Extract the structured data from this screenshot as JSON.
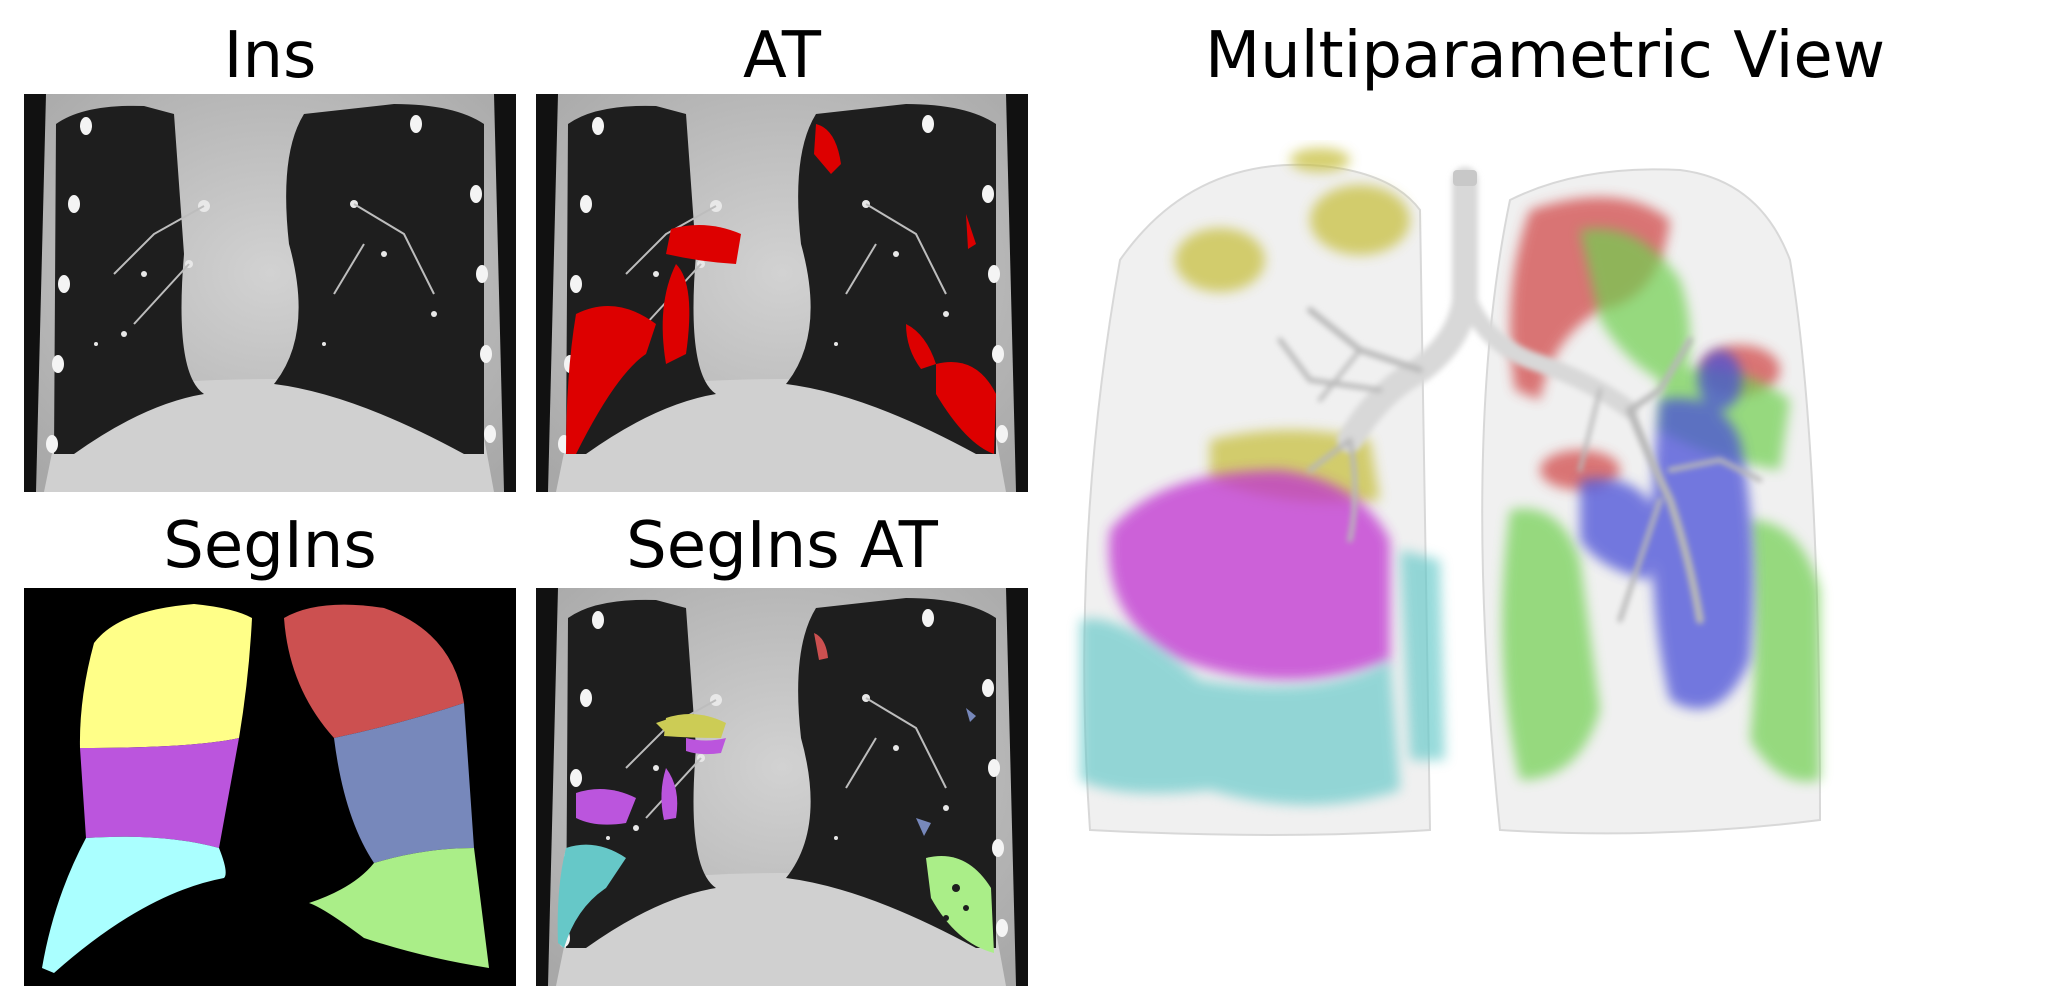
{
  "panels": {
    "ins": {
      "title": "Ins"
    },
    "at": {
      "title": "AT"
    },
    "segins": {
      "title": "SegIns"
    },
    "seginsat": {
      "title": "SegIns AT"
    },
    "multi": {
      "title": "Multiparametric View"
    }
  },
  "colors": {
    "background": "#ffffff",
    "ct_tissue": "#c8c8c8",
    "lung_air": "#1e1e1e",
    "air_trapping": "#dd0000",
    "lobe_right_upper": "#ffff88",
    "lobe_right_middle": "#bb55dd",
    "lobe_right_lower": "#aaffff",
    "lobe_left_upper": "#cc5050",
    "lobe_left_middle": "#7788bb",
    "lobe_left_lower": "#aaee88",
    "render_yellow": "#c8c040",
    "render_magenta": "#c030d0",
    "render_cyan": "#60c8c8",
    "render_red": "#d04040",
    "render_green": "#70d050",
    "render_blue": "#4850d8",
    "airway": "#d8d8d8"
  }
}
